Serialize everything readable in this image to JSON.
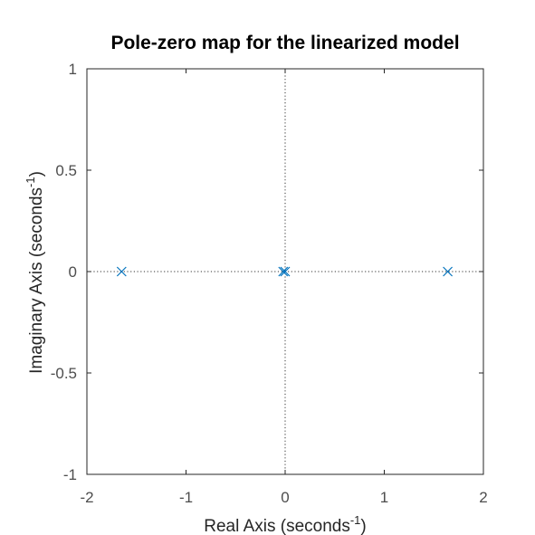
{
  "chart_data": {
    "type": "scatter",
    "title": "Pole-zero map for the linearized model",
    "xlabel": {
      "text": "Real Axis (seconds",
      "sup": "-1",
      "close": ")"
    },
    "ylabel": {
      "text": "Imaginary Axis (seconds",
      "sup": "-1",
      "close": ")"
    },
    "xlim": [
      -2,
      2
    ],
    "ylim": [
      -1,
      1
    ],
    "xticks": [
      -2,
      -1,
      0,
      1,
      2
    ],
    "xtick_labels": [
      "-2",
      "-1",
      "0",
      "1",
      "2"
    ],
    "yticks": [
      -1,
      -0.5,
      0,
      0.5,
      1
    ],
    "ytick_labels": [
      "-1",
      "-0.5",
      "0",
      "0.5",
      "1"
    ],
    "grid": false,
    "reference_lines": {
      "x": 0,
      "y": 0,
      "style": "dotted"
    },
    "poles": [
      {
        "real": -1.65,
        "imag": 0
      },
      {
        "real": -0.02,
        "imag": 0
      },
      {
        "real": 0.0,
        "imag": 0
      },
      {
        "real": 1.64,
        "imag": 0
      }
    ],
    "marker": "x",
    "color": "#0072BD"
  }
}
